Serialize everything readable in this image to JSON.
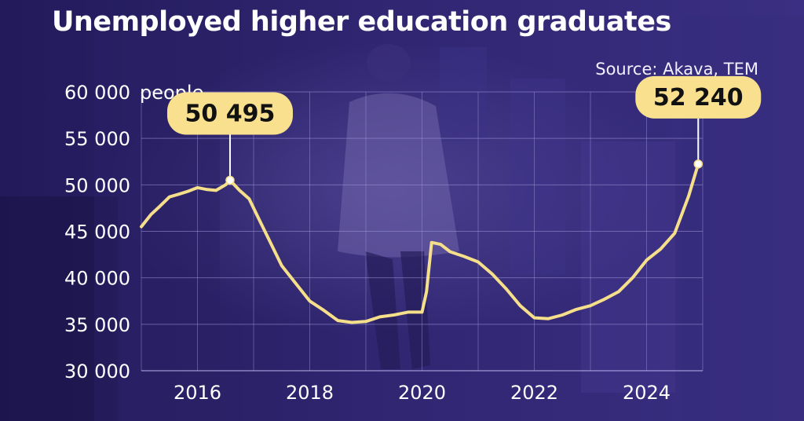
{
  "chart_data": {
    "type": "line",
    "title": "Unemployed higher education graduates",
    "source": "Source: Akava, TEM",
    "unit_label": "people",
    "ylim": [
      30000,
      60000
    ],
    "y_ticks": [
      {
        "value": 30000,
        "label": "30 000"
      },
      {
        "value": 35000,
        "label": "35 000"
      },
      {
        "value": 40000,
        "label": "40 000"
      },
      {
        "value": 45000,
        "label": "45 000"
      },
      {
        "value": 50000,
        "label": "50 000"
      },
      {
        "value": 55000,
        "label": "55 000"
      },
      {
        "value": 60000,
        "label": "60 000"
      }
    ],
    "xlim": [
      2015.0,
      2025.0
    ],
    "x_ticks": [
      {
        "value": 2016,
        "label": "2016"
      },
      {
        "value": 2018,
        "label": "2018"
      },
      {
        "value": 2020,
        "label": "2020"
      },
      {
        "value": 2022,
        "label": "2022"
      },
      {
        "value": 2024,
        "label": "2024"
      }
    ],
    "grid": true,
    "line_color": "#f6df8a",
    "callout_color": "#f8e08e",
    "series": [
      {
        "x": [
          2015.0,
          2015.17,
          2015.33,
          2015.5,
          2015.67,
          2015.83,
          2016.0,
          2016.17,
          2016.33,
          2016.5,
          2016.58,
          2016.75,
          2016.92,
          2017.08,
          2017.25,
          2017.5,
          2017.75,
          2018.0,
          2018.25,
          2018.5,
          2018.75,
          2019.0,
          2019.25,
          2019.5,
          2019.75,
          2020.0,
          2020.08,
          2020.17,
          2020.33,
          2020.5,
          2020.75,
          2021.0,
          2021.25,
          2021.5,
          2021.75,
          2022.0,
          2022.25,
          2022.5,
          2022.75,
          2023.0,
          2023.25,
          2023.5,
          2023.75,
          2024.0,
          2024.25,
          2024.5,
          2024.75,
          2024.92
        ],
        "y": [
          45500,
          46800,
          47700,
          48700,
          49000,
          49300,
          49700,
          49500,
          49400,
          50000,
          50495,
          49400,
          48500,
          46500,
          44400,
          41300,
          39400,
          37500,
          36500,
          35400,
          35200,
          35300,
          35800,
          36000,
          36300,
          36300,
          38500,
          43800,
          43600,
          42800,
          42300,
          41700,
          40400,
          38800,
          37000,
          35700,
          35600,
          36000,
          36600,
          37000,
          37700,
          38500,
          40000,
          41900,
          43100,
          44800,
          48800,
          52240
        ]
      }
    ],
    "annotations": [
      {
        "label": "50 495",
        "x": 2016.58,
        "y": 50495
      },
      {
        "label": "52 240",
        "x": 2024.92,
        "y": 52240
      }
    ]
  }
}
